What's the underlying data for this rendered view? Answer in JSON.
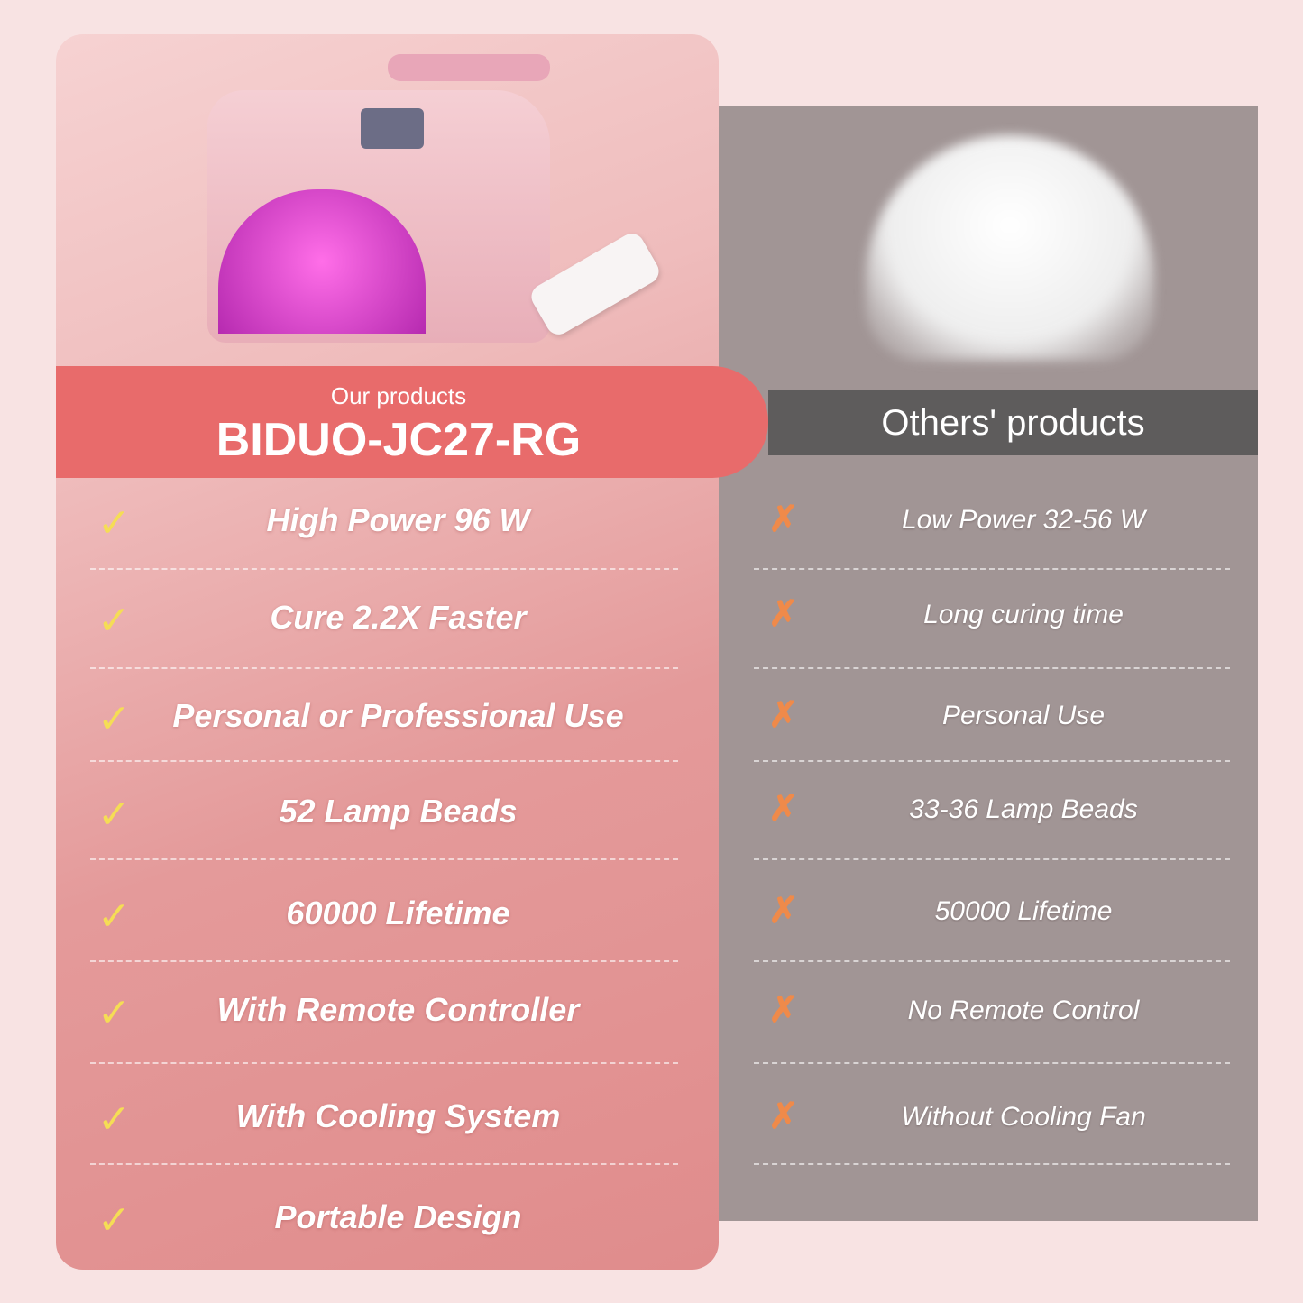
{
  "ours": {
    "label": "Our products",
    "model": "BIDUO-JC27-RG",
    "features": [
      "High Power 96 W",
      "Cure 2.2X Faster",
      "Personal or Professional Use",
      "52 Lamp Beads",
      "60000 Lifetime",
      "With Remote Controller",
      "With Cooling System",
      "Portable Design"
    ],
    "icon": "check-icon",
    "icon_color": "#f5dd55"
  },
  "others": {
    "label": "Others' products",
    "features": [
      "Low Power 32-56 W",
      "Long curing time",
      "Personal Use",
      "33-36 Lamp Beads",
      "50000 Lifetime",
      "No Remote Control",
      "Without Cooling Fan"
    ],
    "icon": "cross-icon",
    "icon_color": "#ef8a4a"
  },
  "colors": {
    "accent": "#e86b6b",
    "others_header": "#5e5c5c",
    "others_panel": "#a19595",
    "background": "#f8e3e3"
  }
}
